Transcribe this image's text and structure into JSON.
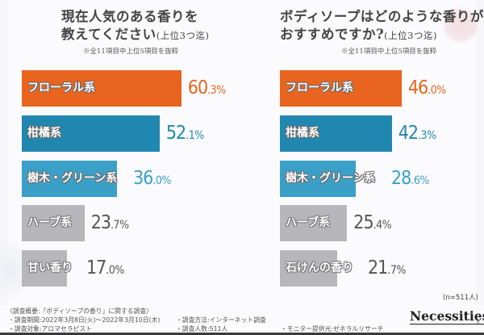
{
  "colors": {
    "floral": "#e8641f",
    "citrus": "#2088b0",
    "wood": "#3aa0c8",
    "gray": "#b7b6ba",
    "val_floral": "#e8641f",
    "val_citrus": "#2088b0",
    "val_wood": "#3aa0c8",
    "val_gray": "#555555"
  },
  "chart_data": [
    {
      "type": "bar",
      "orientation": "horizontal",
      "title": "現在人気のある香りを教えてください",
      "title_line1": "現在人気のある香りを",
      "title_line2": "教えてください",
      "title_suffix": "(上位3つ迄)",
      "note": "※全11項目中上位5項目を抜粋",
      "categories": [
        "フローラル系",
        "柑橘系",
        "樹木・グリーン系",
        "ハーブ系",
        "甘い香り"
      ],
      "values": [
        60.3,
        52.1,
        36.0,
        23.7,
        17.0
      ],
      "value_labels": [
        [
          "60",
          ".3%"
        ],
        [
          "52",
          ".1%"
        ],
        [
          "36",
          ".0%"
        ],
        [
          "23",
          ".7%"
        ],
        [
          "17",
          ".0%"
        ]
      ],
      "bar_colors": [
        "floral",
        "citrus",
        "wood",
        "gray",
        "gray"
      ],
      "unit": "%",
      "xlim": [
        0,
        100
      ],
      "grid": false,
      "legend": "none"
    },
    {
      "type": "bar",
      "orientation": "horizontal",
      "title": "ボディソープはどのような香りがおすすめですか?",
      "title_line1": "ボディソープはどのような香りが",
      "title_line2": "おすすめですか?",
      "title_suffix": "(上位3つ迄)",
      "note": "※全11項目中上位5項目を抜粋",
      "categories": [
        "フローラル系",
        "柑橘系",
        "樹木・グリーン系",
        "ハーブ系",
        "石けんの香り"
      ],
      "values": [
        46.0,
        42.3,
        28.6,
        25.4,
        21.7
      ],
      "value_labels": [
        [
          "46",
          ".0%"
        ],
        [
          "42",
          ".3%"
        ],
        [
          "28",
          ".6%"
        ],
        [
          "25",
          ".4%"
        ],
        [
          "21",
          ".7%"
        ]
      ],
      "bar_colors": [
        "floral",
        "citrus",
        "wood",
        "gray",
        "gray"
      ],
      "unit": "%",
      "xlim": [
        0,
        100
      ],
      "grid": false,
      "legend": "none",
      "sample_size": "(n=511人)"
    }
  ],
  "footer": {
    "overview": "〈調査概要:「ボディソープの香り」に関する調査〉",
    "period": "・調査期間:2022年3月8日(火)～2022年3月10日(木)",
    "target": "・調査対象:アロマセラピスト",
    "method": "・調査方法:インターネット調査",
    "count": "・調査人数:511人",
    "provider": "・モニター提供元:ゼネラルリサーチ",
    "logo": "Necessities",
    "logo_mark": "®"
  }
}
